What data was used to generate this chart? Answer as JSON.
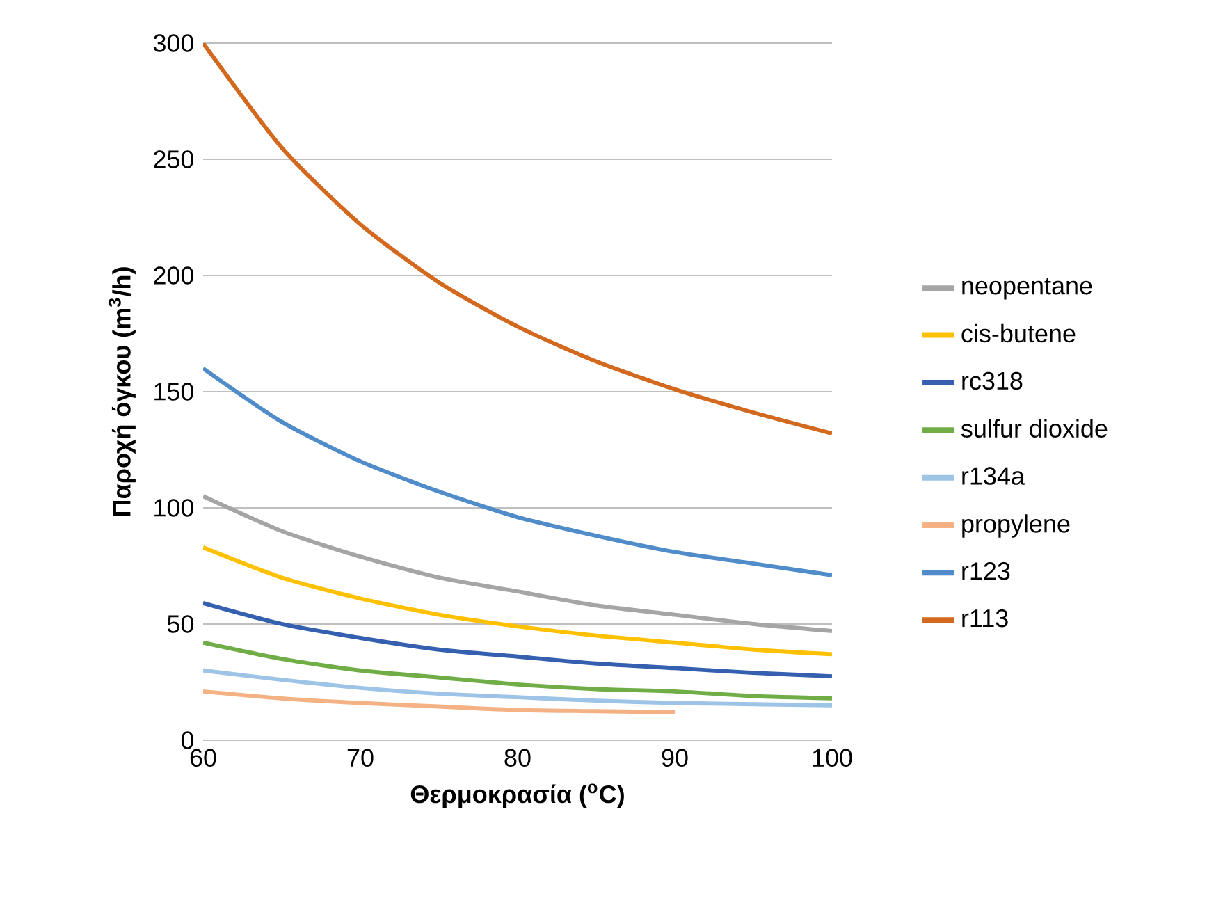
{
  "chart_data": {
    "type": "line",
    "xlabel": "Θερμοκρασία ($^{o}$C)",
    "ylabel": "Παροχή όγκου (m$^{3}$/h)",
    "x": [
      60,
      65,
      70,
      75,
      80,
      85,
      90,
      95,
      100
    ],
    "xlim": [
      60,
      100
    ],
    "xticks": [
      60,
      70,
      80,
      90,
      100
    ],
    "ylim": [
      0,
      300
    ],
    "yticks": [
      0,
      50,
      100,
      150,
      200,
      250,
      300
    ],
    "grid": "y",
    "legend": "right",
    "marker": "none",
    "line_style": "solid",
    "series": [
      {
        "name": "neopentane",
        "color": "#a5a5a5",
        "values": [
          105,
          90,
          79,
          70,
          64,
          58,
          54,
          50,
          47
        ]
      },
      {
        "name": "cis-butene",
        "color": "#ffc000",
        "values": [
          83,
          70,
          61,
          54,
          49,
          45,
          42,
          39,
          37
        ]
      },
      {
        "name": "rc318",
        "color": "#3560b0",
        "values": [
          59,
          50,
          44,
          39,
          36,
          33,
          31,
          29,
          27.5
        ]
      },
      {
        "name": "sulfur dioxide",
        "color": "#70ad47",
        "values": [
          42,
          35,
          30,
          27,
          24,
          22,
          21,
          19,
          18
        ]
      },
      {
        "name": "r134a",
        "color": "#9dc3e6",
        "values": [
          30,
          26,
          22.5,
          20,
          18.5,
          17,
          16,
          15.5,
          15
        ]
      },
      {
        "name": "propylene",
        "color": "#f4b183",
        "values": [
          21,
          18,
          16,
          14.5,
          13,
          12.5,
          12,
          null,
          null
        ]
      },
      {
        "name": "r123",
        "color": "#4f8cc9",
        "values": [
          160,
          137,
          120,
          107,
          96,
          88,
          81,
          76,
          71
        ]
      },
      {
        "name": "r113",
        "color": "#d2691e",
        "values": [
          300,
          255,
          222,
          197,
          178,
          163,
          151,
          141,
          132
        ]
      }
    ]
  }
}
